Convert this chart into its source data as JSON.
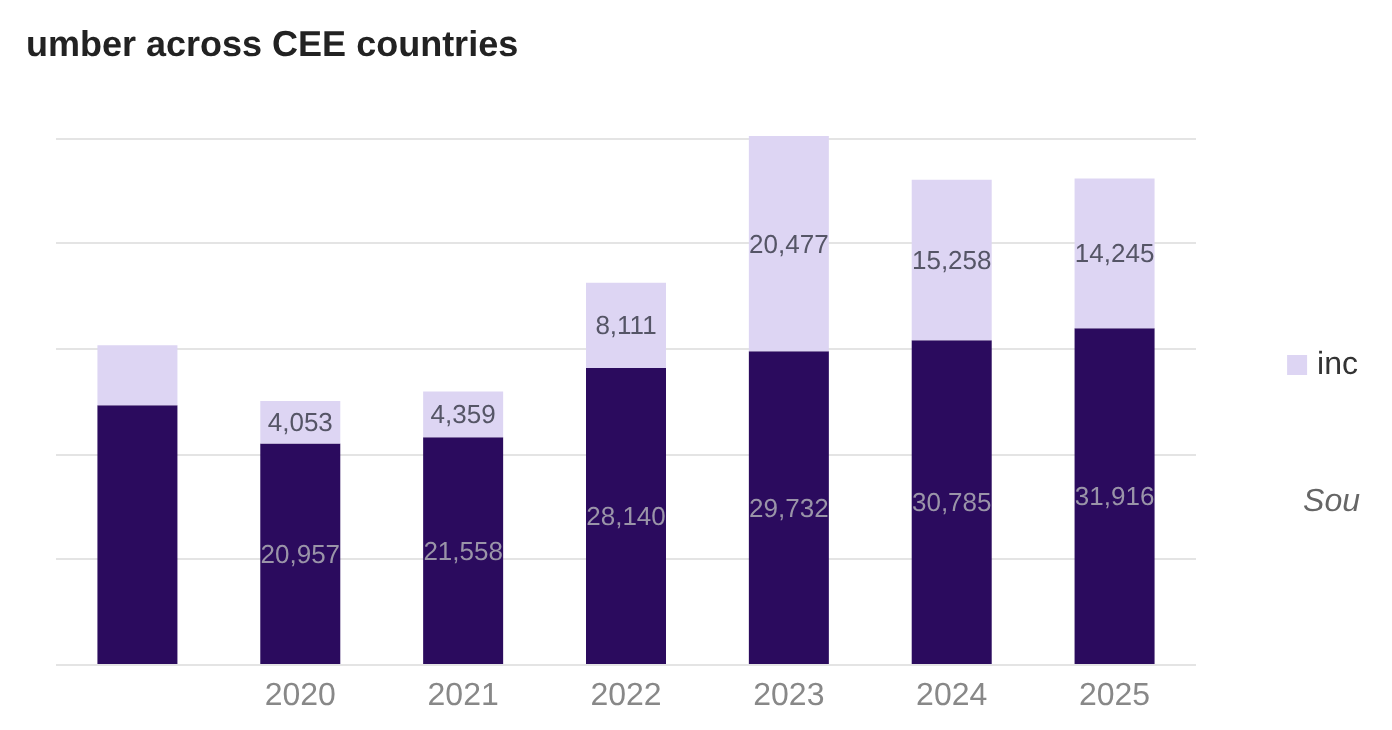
{
  "chart_data": {
    "type": "bar",
    "title": "umber across CEE countries",
    "categories": [
      null,
      "2020",
      "2021",
      "2022",
      "2023",
      "2024",
      "2025"
    ],
    "stacked": true,
    "series": [
      {
        "color": "#2b0b5e",
        "values": [
          24600,
          20957,
          21558,
          28140,
          29732,
          30785,
          31916
        ],
        "value_labels": [
          null,
          "20,957",
          "21,558",
          "28,140",
          "29,732",
          "30,785",
          "31,916"
        ]
      },
      {
        "name": "inc",
        "color": "#ddd5f3",
        "values": [
          5700,
          4053,
          4359,
          8111,
          20477,
          15258,
          14245
        ],
        "value_labels": [
          null,
          "4,053",
          "4,359",
          "8,111",
          "20,477",
          "15,258",
          "14,245"
        ]
      }
    ],
    "yticks": [
      {
        "value": 0,
        "label": null
      },
      {
        "value": 10000,
        "label": null
      },
      {
        "value": 20000,
        "label": null
      },
      {
        "value": 30000,
        "label": null
      },
      {
        "value": 40000,
        "label": null
      },
      {
        "value": 50000,
        "label": null
      }
    ],
    "tick_labels": "x",
    "grid": "y",
    "legend": "right",
    "annotations": [
      "Sou"
    ]
  }
}
